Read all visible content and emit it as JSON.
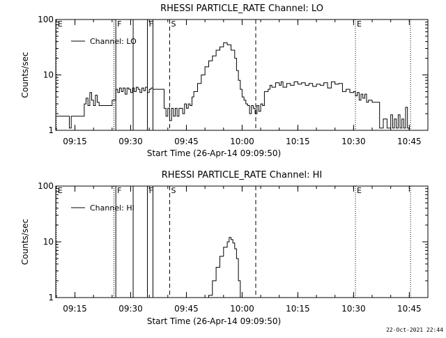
{
  "footer": {
    "timestamp": "22-Oct-2021 22:44"
  },
  "chart_data": [
    {
      "type": "line",
      "title": "RHESSI PARTICLE_RATE Channel: LO",
      "xlabel": "Start Time (26-Apr-14 09:09:50)",
      "ylabel": "Counts/sec",
      "y_scale": "log",
      "ylim": [
        1,
        100
      ],
      "y_ticks": [
        "1",
        "10",
        "100"
      ],
      "xlim": [
        "09:09:50",
        "10:50:00"
      ],
      "x_ticks": [
        "09:15",
        "09:30",
        "09:45",
        "10:00",
        "10:15",
        "10:30",
        "10:45"
      ],
      "grid": false,
      "legend": "top-left",
      "series": [
        {
          "name": "Channel: LO",
          "x": [
            "09:09:50",
            "09:13:00",
            "09:13:30",
            "09:14:00",
            "09:17:00",
            "09:17:30",
            "09:18:00",
            "09:18:30",
            "09:19:00",
            "09:19:30",
            "09:20:00",
            "09:20:30",
            "09:21:00",
            "09:21:30",
            "09:22:00",
            "09:23:00",
            "09:24:00",
            "09:25:00",
            "09:26:00",
            "09:26:30",
            "09:27:00",
            "09:27:30",
            "09:28:00",
            "09:28:30",
            "09:29:00",
            "09:29:30",
            "09:30:00",
            "09:30:30",
            "09:31:00",
            "09:31:30",
            "09:32:00",
            "09:32:30",
            "09:33:00",
            "09:33:30",
            "09:34:00",
            "09:34:30",
            "09:35:00",
            "09:35:30",
            "09:36:00",
            "09:37:00",
            "09:38:00",
            "09:39:00",
            "09:39:30",
            "09:40:00",
            "09:40:30",
            "09:41:00",
            "09:41:30",
            "09:42:00",
            "09:42:30",
            "09:43:00",
            "09:43:30",
            "09:44:00",
            "09:44:30",
            "09:45:00",
            "09:45:30",
            "09:46:00",
            "09:46:30",
            "09:47:00",
            "09:48:00",
            "09:49:00",
            "09:50:00",
            "09:51:00",
            "09:52:00",
            "09:53:00",
            "09:54:00",
            "09:55:00",
            "09:56:00",
            "09:57:00",
            "09:58:00",
            "09:58:30",
            "09:59:00",
            "09:59:30",
            "10:00:00",
            "10:00:30",
            "10:01:00",
            "10:01:30",
            "10:02:00",
            "10:02:30",
            "10:03:00",
            "10:03:30",
            "10:04:00",
            "10:04:30",
            "10:05:00",
            "10:05:30",
            "10:06:00",
            "10:07:00",
            "10:07:30",
            "10:08:00",
            "10:09:00",
            "10:10:00",
            "10:10:30",
            "10:11:00",
            "10:12:00",
            "10:13:00",
            "10:14:00",
            "10:15:00",
            "10:16:00",
            "10:17:00",
            "10:18:00",
            "10:19:00",
            "10:20:00",
            "10:21:00",
            "10:22:00",
            "10:23:00",
            "10:24:00",
            "10:25:00",
            "10:26:00",
            "10:27:00",
            "10:28:00",
            "10:29:00",
            "10:30:00",
            "10:30:30",
            "10:31:00",
            "10:31:30",
            "10:32:00",
            "10:32:30",
            "10:33:00",
            "10:33:30",
            "10:34:00",
            "10:35:00",
            "10:36:00",
            "10:37:00",
            "10:38:00",
            "10:39:00",
            "10:40:00",
            "10:40:30",
            "10:41:00",
            "10:41:30",
            "10:42:00",
            "10:42:30",
            "10:43:00",
            "10:43:30",
            "10:44:00",
            "10:44:30",
            "10:45:00"
          ],
          "y": [
            1.8,
            1.8,
            1.1,
            1.8,
            1.8,
            3.0,
            3.8,
            2.8,
            4.8,
            3.5,
            2.8,
            4.3,
            3.2,
            2.8,
            2.8,
            2.8,
            2.8,
            3.5,
            5.5,
            4.8,
            5.8,
            5.0,
            5.8,
            4.5,
            5.8,
            5.5,
            4.8,
            5.8,
            5.0,
            6.0,
            5.5,
            4.8,
            5.8,
            5.2,
            6.0,
            4.8,
            5.5,
            5.8,
            5.5,
            5.5,
            5.5,
            2.5,
            1.8,
            2.5,
            1.5,
            2.5,
            1.8,
            2.5,
            1.8,
            2.5,
            2.5,
            2.0,
            3.0,
            2.5,
            3.0,
            2.8,
            4.0,
            5.0,
            7.0,
            10.0,
            14.0,
            18.0,
            22.0,
            28.0,
            32.0,
            38.0,
            35.0,
            28.0,
            20.0,
            12.0,
            8.0,
            5.5,
            4.0,
            3.5,
            3.0,
            2.8,
            2.0,
            2.8,
            2.5,
            2.0,
            2.8,
            2.2,
            3.0,
            2.8,
            5.0,
            5.5,
            6.5,
            6.0,
            7.2,
            6.5,
            7.5,
            6.0,
            7.0,
            6.5,
            7.5,
            6.8,
            7.2,
            6.5,
            7.0,
            6.2,
            6.8,
            6.5,
            7.2,
            5.8,
            7.5,
            6.8,
            7.0,
            5.0,
            5.5,
            4.8,
            5.0,
            4.2,
            4.8,
            3.5,
            4.5,
            3.8,
            4.5,
            3.2,
            3.5,
            3.2,
            3.2,
            1.1,
            1.6,
            1.1,
            1.9,
            1.1,
            1.6,
            1.1,
            1.9,
            1.1,
            1.6,
            1.1,
            2.6,
            1.1,
            1.0
          ]
        }
      ],
      "markers": [
        {
          "label": "E",
          "time": "09:10:00",
          "style": "dotted"
        },
        {
          "label": "",
          "time": "09:25:30",
          "style": "dotted"
        },
        {
          "label": "F",
          "time": "09:26:00",
          "style": "solid"
        },
        {
          "label": "",
          "time": "09:30:40",
          "style": "solid"
        },
        {
          "label": "F",
          "time": "09:34:30",
          "style": "solid"
        },
        {
          "label": "",
          "time": "09:36:00",
          "style": "solid"
        },
        {
          "label": "S",
          "time": "09:40:30",
          "style": "dashed"
        },
        {
          "label": "",
          "time": "10:03:40",
          "style": "dashed"
        },
        {
          "label": "E",
          "time": "10:30:30",
          "style": "dotted"
        },
        {
          "label": "",
          "time": "10:45:20",
          "style": "dotted"
        }
      ]
    },
    {
      "type": "line",
      "title": "RHESSI PARTICLE_RATE Channel: HI",
      "xlabel": "Start Time (26-Apr-14 09:09:50)",
      "ylabel": "Counts/sec",
      "y_scale": "log",
      "ylim": [
        1,
        100
      ],
      "y_ticks": [
        "1",
        "10",
        "100"
      ],
      "xlim": [
        "09:09:50",
        "10:50:00"
      ],
      "x_ticks": [
        "09:15",
        "09:30",
        "09:45",
        "10:00",
        "10:15",
        "10:30",
        "10:45"
      ],
      "grid": false,
      "legend": "top-left",
      "series": [
        {
          "name": "Channel: HI",
          "x": [
            "09:50:30",
            "09:51:00",
            "09:52:00",
            "09:53:00",
            "09:54:00",
            "09:55:00",
            "09:56:00",
            "09:56:30",
            "09:57:00",
            "09:57:30",
            "09:58:00",
            "09:58:30",
            "09:59:00",
            "09:59:30"
          ],
          "y": [
            0.9,
            1.1,
            2.0,
            3.5,
            5.5,
            8.0,
            10.0,
            12.0,
            11.0,
            9.5,
            7.5,
            5.0,
            2.0,
            0.9
          ]
        }
      ],
      "markers": [
        {
          "label": "E",
          "time": "09:10:00",
          "style": "dotted"
        },
        {
          "label": "",
          "time": "09:25:30",
          "style": "dotted"
        },
        {
          "label": "F",
          "time": "09:26:00",
          "style": "solid"
        },
        {
          "label": "",
          "time": "09:30:40",
          "style": "solid"
        },
        {
          "label": "F",
          "time": "09:34:30",
          "style": "solid"
        },
        {
          "label": "",
          "time": "09:36:00",
          "style": "solid"
        },
        {
          "label": "S",
          "time": "09:40:30",
          "style": "dashed"
        },
        {
          "label": "",
          "time": "10:03:40",
          "style": "dashed"
        },
        {
          "label": "E",
          "time": "10:30:30",
          "style": "dotted"
        },
        {
          "label": "",
          "time": "10:45:20",
          "style": "dotted"
        }
      ]
    }
  ]
}
